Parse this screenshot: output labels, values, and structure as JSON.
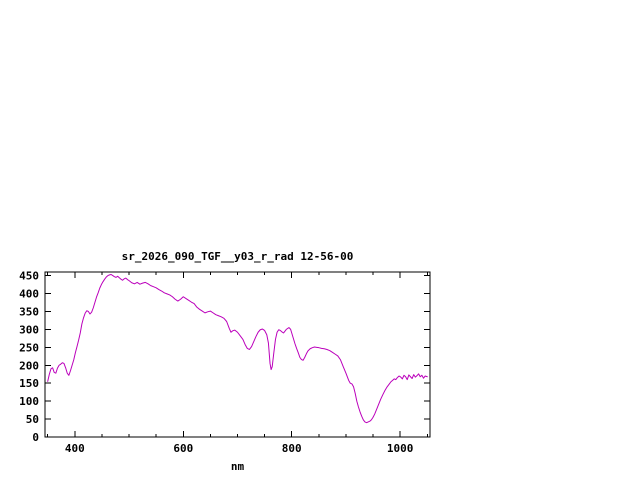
{
  "page": {
    "background": "#ffffff"
  },
  "chart_data": {
    "type": "line",
    "title": "sr_2026_090_TGF__y03_r_rad 12-56-00",
    "xlabel": "nm",
    "ylabel": "",
    "xlim": [
      345,
      1055
    ],
    "ylim": [
      0,
      460
    ],
    "x_major_ticks": [
      400,
      600,
      800,
      1000
    ],
    "x_minor_ticks": [
      350,
      450,
      500,
      550,
      650,
      700,
      750,
      850,
      900,
      950,
      1050
    ],
    "y_ticks": [
      0,
      50,
      100,
      150,
      200,
      250,
      300,
      350,
      400,
      450
    ],
    "grid": false,
    "legend": "none",
    "line_color": "#bb00bb",
    "axis_color": "#000000",
    "series": [
      {
        "name": "sr_2026_090_TGF__y03_r_rad",
        "points": [
          [
            350,
            155
          ],
          [
            353,
            175
          ],
          [
            356,
            190
          ],
          [
            359,
            193
          ],
          [
            362,
            180
          ],
          [
            365,
            178
          ],
          [
            368,
            192
          ],
          [
            371,
            200
          ],
          [
            374,
            203
          ],
          [
            377,
            207
          ],
          [
            380,
            205
          ],
          [
            383,
            193
          ],
          [
            386,
            178
          ],
          [
            389,
            172
          ],
          [
            392,
            185
          ],
          [
            395,
            200
          ],
          [
            398,
            215
          ],
          [
            401,
            235
          ],
          [
            404,
            252
          ],
          [
            407,
            270
          ],
          [
            410,
            290
          ],
          [
            413,
            315
          ],
          [
            416,
            332
          ],
          [
            419,
            345
          ],
          [
            422,
            352
          ],
          [
            425,
            350
          ],
          [
            428,
            343
          ],
          [
            431,
            348
          ],
          [
            434,
            360
          ],
          [
            437,
            375
          ],
          [
            440,
            390
          ],
          [
            443,
            402
          ],
          [
            446,
            415
          ],
          [
            449,
            425
          ],
          [
            452,
            433
          ],
          [
            455,
            440
          ],
          [
            458,
            446
          ],
          [
            461,
            450
          ],
          [
            464,
            452
          ],
          [
            467,
            453
          ],
          [
            470,
            450
          ],
          [
            473,
            447
          ],
          [
            476,
            445
          ],
          [
            479,
            448
          ],
          [
            482,
            444
          ],
          [
            485,
            440
          ],
          [
            488,
            437
          ],
          [
            491,
            441
          ],
          [
            494,
            443
          ],
          [
            497,
            439
          ],
          [
            500,
            436
          ],
          [
            505,
            430
          ],
          [
            510,
            427
          ],
          [
            515,
            431
          ],
          [
            520,
            426
          ],
          [
            525,
            429
          ],
          [
            530,
            431
          ],
          [
            535,
            427
          ],
          [
            540,
            422
          ],
          [
            545,
            419
          ],
          [
            550,
            416
          ],
          [
            555,
            411
          ],
          [
            560,
            407
          ],
          [
            565,
            402
          ],
          [
            570,
            399
          ],
          [
            575,
            396
          ],
          [
            580,
            391
          ],
          [
            585,
            384
          ],
          [
            590,
            379
          ],
          [
            595,
            384
          ],
          [
            600,
            391
          ],
          [
            605,
            386
          ],
          [
            610,
            381
          ],
          [
            615,
            376
          ],
          [
            620,
            372
          ],
          [
            625,
            362
          ],
          [
            630,
            356
          ],
          [
            635,
            351
          ],
          [
            640,
            346
          ],
          [
            645,
            349
          ],
          [
            650,
            351
          ],
          [
            655,
            346
          ],
          [
            660,
            341
          ],
          [
            665,
            338
          ],
          [
            670,
            335
          ],
          [
            675,
            331
          ],
          [
            680,
            322
          ],
          [
            685,
            302
          ],
          [
            688,
            292
          ],
          [
            691,
            296
          ],
          [
            695,
            298
          ],
          [
            700,
            292
          ],
          [
            705,
            282
          ],
          [
            710,
            272
          ],
          [
            714,
            258
          ],
          [
            718,
            247
          ],
          [
            722,
            244
          ],
          [
            726,
            252
          ],
          [
            730,
            266
          ],
          [
            734,
            280
          ],
          [
            738,
            292
          ],
          [
            742,
            299
          ],
          [
            746,
            301
          ],
          [
            750,
            297
          ],
          [
            754,
            285
          ],
          [
            757,
            262
          ],
          [
            760,
            205
          ],
          [
            762,
            188
          ],
          [
            764,
            196
          ],
          [
            767,
            235
          ],
          [
            770,
            272
          ],
          [
            773,
            292
          ],
          [
            776,
            299
          ],
          [
            779,
            297
          ],
          [
            782,
            293
          ],
          [
            785,
            290
          ],
          [
            790,
            300
          ],
          [
            795,
            305
          ],
          [
            798,
            300
          ],
          [
            800,
            290
          ],
          [
            803,
            275
          ],
          [
            806,
            260
          ],
          [
            809,
            247
          ],
          [
            812,
            235
          ],
          [
            815,
            222
          ],
          [
            818,
            216
          ],
          [
            821,
            214
          ],
          [
            824,
            222
          ],
          [
            827,
            232
          ],
          [
            830,
            240
          ],
          [
            834,
            246
          ],
          [
            838,
            249
          ],
          [
            842,
            251
          ],
          [
            846,
            250
          ],
          [
            850,
            249
          ],
          [
            855,
            247
          ],
          [
            860,
            246
          ],
          [
            865,
            244
          ],
          [
            870,
            241
          ],
          [
            875,
            236
          ],
          [
            880,
            231
          ],
          [
            885,
            226
          ],
          [
            890,
            215
          ],
          [
            895,
            196
          ],
          [
            900,
            178
          ],
          [
            905,
            158
          ],
          [
            908,
            150
          ],
          [
            911,
            148
          ],
          [
            914,
            140
          ],
          [
            917,
            122
          ],
          [
            920,
            100
          ],
          [
            923,
            84
          ],
          [
            926,
            70
          ],
          [
            929,
            58
          ],
          [
            932,
            48
          ],
          [
            935,
            42
          ],
          [
            938,
            40
          ],
          [
            941,
            42
          ],
          [
            944,
            44
          ],
          [
            947,
            48
          ],
          [
            950,
            55
          ],
          [
            953,
            64
          ],
          [
            956,
            75
          ],
          [
            960,
            90
          ],
          [
            964,
            105
          ],
          [
            968,
            118
          ],
          [
            972,
            130
          ],
          [
            976,
            140
          ],
          [
            980,
            148
          ],
          [
            983,
            154
          ],
          [
            986,
            158
          ],
          [
            989,
            162
          ],
          [
            992,
            160
          ],
          [
            995,
            166
          ],
          [
            998,
            170
          ],
          [
            1001,
            167
          ],
          [
            1004,
            162
          ],
          [
            1007,
            172
          ],
          [
            1010,
            168
          ],
          [
            1013,
            160
          ],
          [
            1016,
            173
          ],
          [
            1019,
            168
          ],
          [
            1022,
            163
          ],
          [
            1025,
            174
          ],
          [
            1028,
            167
          ],
          [
            1031,
            171
          ],
          [
            1034,
            176
          ],
          [
            1037,
            168
          ],
          [
            1040,
            172
          ],
          [
            1043,
            164
          ],
          [
            1046,
            170
          ],
          [
            1050,
            168
          ]
        ]
      }
    ]
  }
}
